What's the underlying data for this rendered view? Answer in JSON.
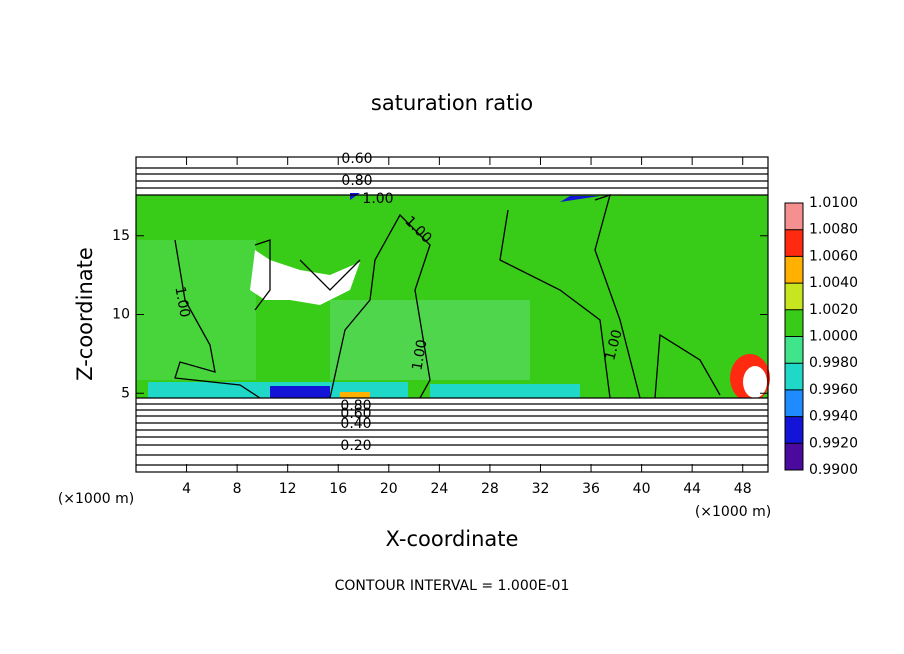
{
  "chart_data": {
    "type": "contour",
    "title": "saturation ratio",
    "x_label": "X-coordinate",
    "y_label": "Z-coordinate",
    "x_unit": "(×1000 m)",
    "y_unit": "(×1000 m)",
    "footer": "CONTOUR INTERVAL = 1.000E-01",
    "xlim": [
      0,
      50
    ],
    "xticks": [
      4,
      8,
      12,
      16,
      20,
      24,
      28,
      32,
      36,
      40,
      44,
      48
    ],
    "ylim": [
      0,
      20
    ],
    "yticks": [
      5,
      10,
      15
    ],
    "contour_labels": [
      "0.60",
      "0.80",
      "1.00",
      "1.00",
      "1.00",
      "1.00",
      "1.00",
      "0.80",
      "0.60",
      "0.40",
      "0.20"
    ],
    "colorbar": {
      "ticks": [
        {
          "value": 0.99,
          "label": "0.9900"
        },
        {
          "value": 0.992,
          "label": "0.9920"
        },
        {
          "value": 0.994,
          "label": "0.9940"
        },
        {
          "value": 0.996,
          "label": "0.9960"
        },
        {
          "value": 0.998,
          "label": "0.9980"
        },
        {
          "value": 1.0,
          "label": "1.0000"
        },
        {
          "value": 1.002,
          "label": "1.0020"
        },
        {
          "value": 1.004,
          "label": "1.0040"
        },
        {
          "value": 1.006,
          "label": "1.0060"
        },
        {
          "value": 1.008,
          "label": "1.0080"
        },
        {
          "value": 1.01,
          "label": "1.0100"
        }
      ],
      "colors": [
        "#4a0a9e",
        "#1414d8",
        "#1e8cff",
        "#20d8c8",
        "#40e48a",
        "#38cc18",
        "#c8e620",
        "#ffb000",
        "#ff2a10",
        "#f49090"
      ]
    }
  }
}
